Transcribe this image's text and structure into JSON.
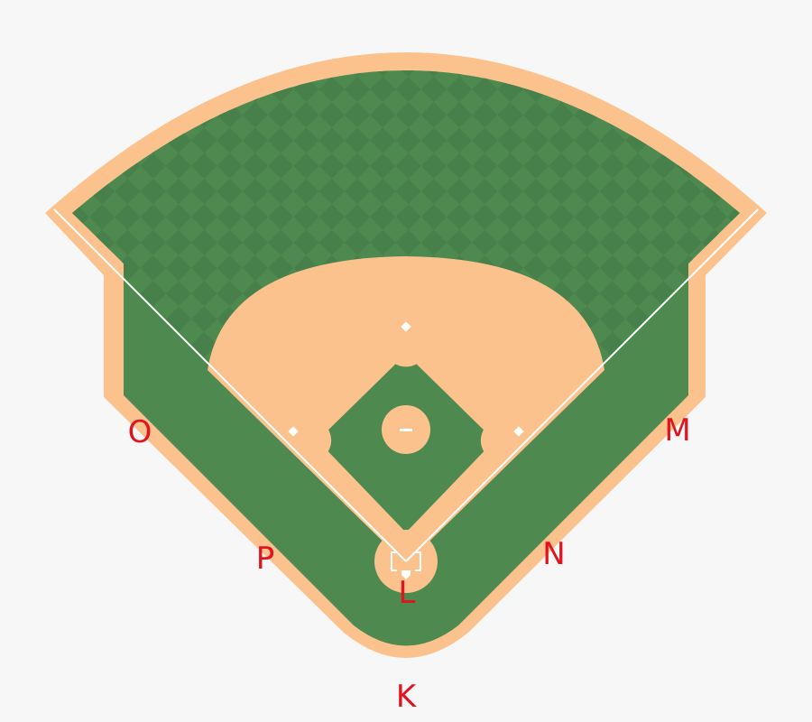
{
  "colors": {
    "background": "#f7f7f7",
    "dirt": "#fcc28e",
    "grass": "#4e8a4f",
    "grass_check": "#47804a",
    "chalk": "#ffffff",
    "label": "#e0141e"
  },
  "labels": {
    "k": "K",
    "l": "L",
    "m": "M",
    "n": "N",
    "o": "O",
    "p": "P"
  }
}
